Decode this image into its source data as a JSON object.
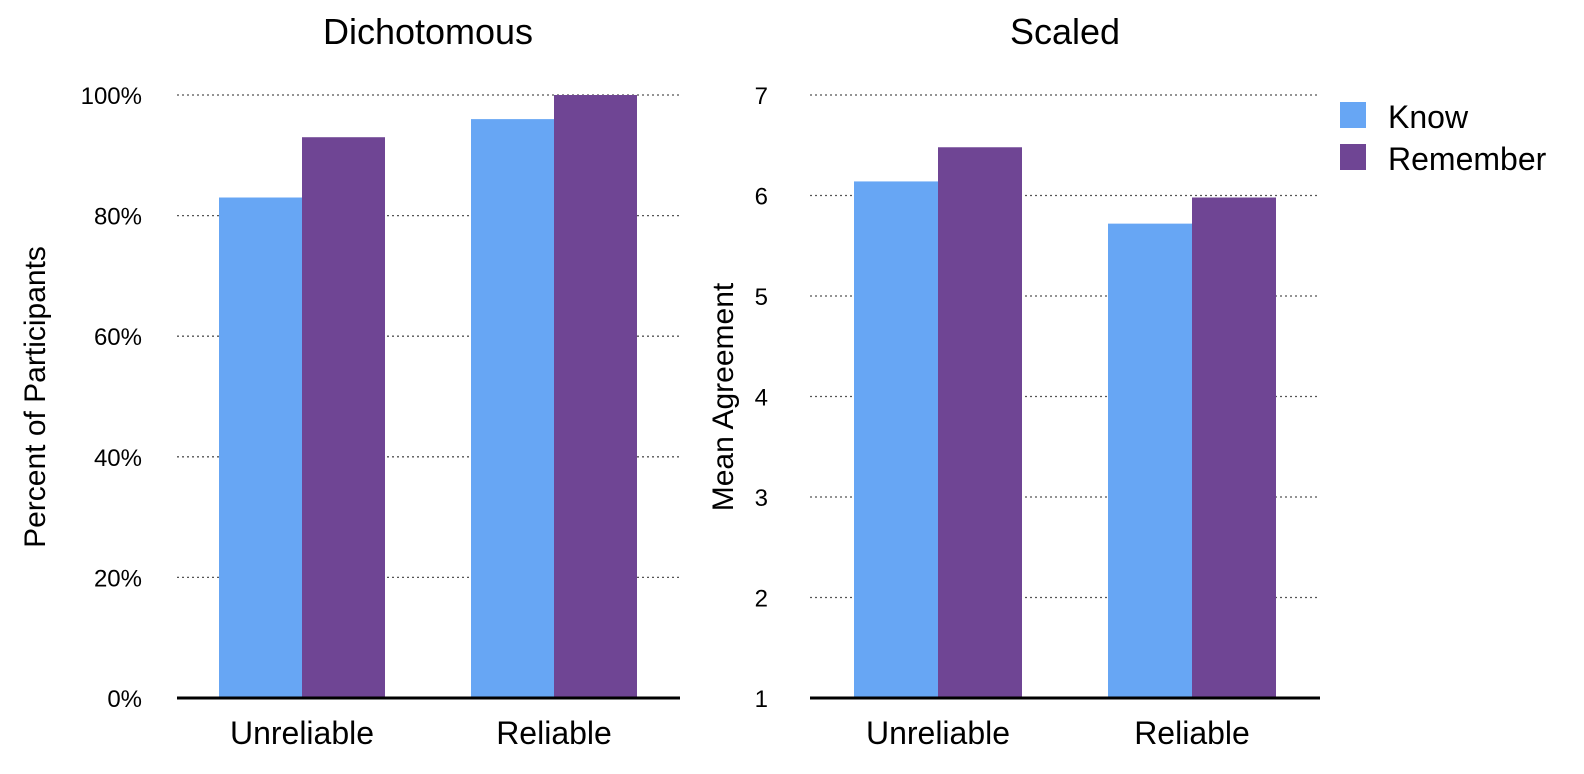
{
  "chart_data": [
    {
      "type": "bar",
      "title": "Dichotomous",
      "ylabel": "Percent of Participants",
      "xlabel": "",
      "categories": [
        "Unreliable",
        "Reliable"
      ],
      "ylim": [
        0,
        100
      ],
      "yticks": [
        0,
        20,
        40,
        60,
        80,
        100
      ],
      "ytick_labels": [
        "0%",
        "20%",
        "40%",
        "60%",
        "80%",
        "100%"
      ],
      "grid": true,
      "series": [
        {
          "name": "Know",
          "values": [
            83,
            96
          ]
        },
        {
          "name": "Remember",
          "values": [
            93,
            100
          ]
        }
      ]
    },
    {
      "type": "bar",
      "title": "Scaled",
      "ylabel": "Mean Agreement",
      "xlabel": "",
      "categories": [
        "Unreliable",
        "Reliable"
      ],
      "ylim": [
        1,
        7
      ],
      "yticks": [
        1,
        2,
        3,
        4,
        5,
        6,
        7
      ],
      "ytick_labels": [
        "1",
        "2",
        "3",
        "4",
        "5",
        "6",
        "7"
      ],
      "grid": true,
      "series": [
        {
          "name": "Know",
          "values": [
            6.14,
            5.72
          ]
        },
        {
          "name": "Remember",
          "values": [
            6.48,
            5.98
          ]
        }
      ]
    }
  ],
  "legend": {
    "placement": "top-right",
    "items": [
      {
        "label": "Know",
        "color": "#67a6f4"
      },
      {
        "label": "Remember",
        "color": "#6f4594"
      }
    ]
  },
  "colors": {
    "Know": "#67a6f4",
    "Remember": "#6f4594"
  }
}
